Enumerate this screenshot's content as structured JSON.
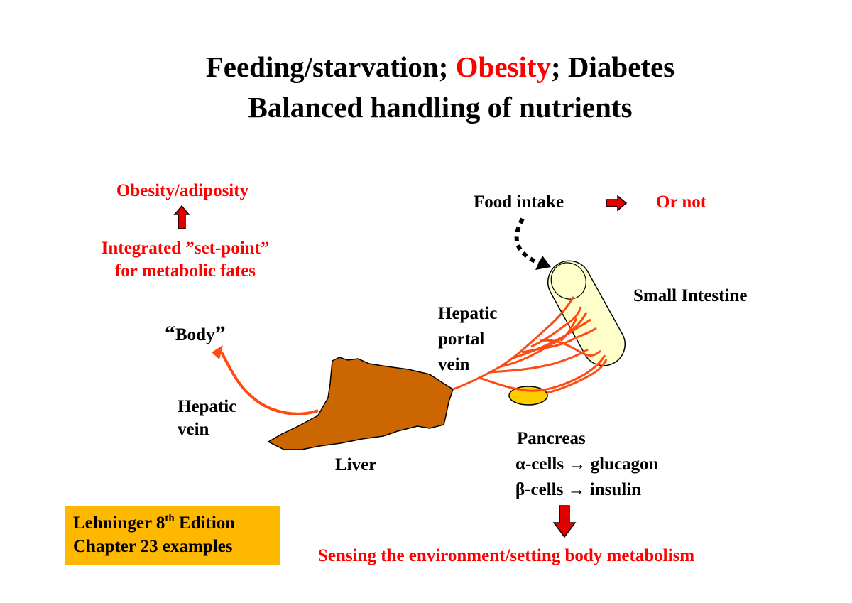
{
  "title": {
    "line1_a": "Feeding/starvation; ",
    "line1_b": "Obesity",
    "line1_c": "; Diabetes",
    "line2": "Balanced handling of nutrients"
  },
  "labels": {
    "obesity": "Obesity/adiposity",
    "setpoint_1": "Integrated ”set-point”",
    "setpoint_2": "for metabolic fates",
    "body_open": "“",
    "body": "Body",
    "body_close": "”",
    "hepatic_vein_1": "Hepatic",
    "hepatic_vein_2": "vein",
    "liver": "Liver",
    "portal_1": "Hepatic",
    "portal_2": "portal",
    "portal_3": "vein",
    "food_intake": "Food intake",
    "or_not": "Or not",
    "small_intestine": "Small Intestine",
    "pancreas": "Pancreas",
    "alpha": "α-cells → glucagon",
    "beta": "β-cells → insulin",
    "sensing": "Sensing the environment/setting body metabolism"
  },
  "source": {
    "line1_a": "Lehninger 8",
    "line1_sup": "th",
    "line1_b": " Edition",
    "line2": "Chapter 23 examples"
  },
  "colors": {
    "accent_red": "#ff0000",
    "vessel": "#ff4a12",
    "liver": "#cc6600",
    "intestine": "#ffffcc",
    "pancreas": "#ffcc00",
    "source_box": "#ffb800"
  }
}
